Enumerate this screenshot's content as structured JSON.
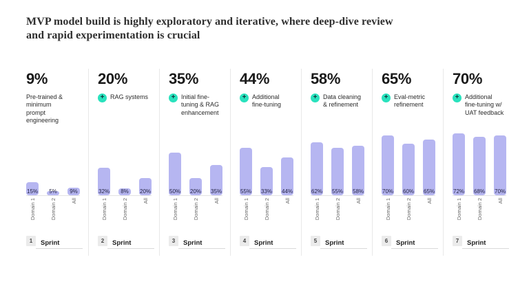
{
  "title": "MVP model build is highly exploratory and iterative, where deep-dive review\nand rapid experimentation is crucial",
  "sprint_word": "Sprint",
  "colors": {
    "bar_fill": "#b6b6f1",
    "bar_label_text": "#1f1f3d",
    "plus_icon_bg": "#29e2bd",
    "divider": "#e8e8e8",
    "headline_text": "#1a1a1a",
    "title_text": "#2f2f2f"
  },
  "icons": {
    "plus_glyph": "+"
  },
  "chart_data": {
    "type": "bar",
    "categories": [
      "Domain 1",
      "Domain 2",
      "All"
    ],
    "value_unit": "%",
    "ylim": [
      0,
      100
    ],
    "grid": false,
    "bar_label_position": "inside-bottom",
    "panels": [
      {
        "sprint": "1",
        "headline": "9%",
        "label": "Pre-trained & minimum prompt engineering",
        "has_plus_icon": false,
        "values": [
          15,
          5,
          9
        ],
        "value_labels": [
          "15%",
          "5%",
          "9%"
        ]
      },
      {
        "sprint": "2",
        "headline": "20%",
        "label": "RAG systems",
        "has_plus_icon": true,
        "values": [
          32,
          8,
          20
        ],
        "value_labels": [
          "32%",
          "8%",
          "20%"
        ]
      },
      {
        "sprint": "3",
        "headline": "35%",
        "label": "Initial fine-tuning & RAG enhancement",
        "has_plus_icon": true,
        "values": [
          50,
          20,
          35
        ],
        "value_labels": [
          "50%",
          "20%",
          "35%"
        ]
      },
      {
        "sprint": "4",
        "headline": "44%",
        "label": "Additional fine-tuning",
        "has_plus_icon": true,
        "values": [
          55,
          33,
          44
        ],
        "value_labels": [
          "55%",
          "33%",
          "44%"
        ]
      },
      {
        "sprint": "5",
        "headline": "58%",
        "label": "Data cleaning & refinement",
        "has_plus_icon": true,
        "values": [
          62,
          55,
          58
        ],
        "value_labels": [
          "62%",
          "55%",
          "58%"
        ]
      },
      {
        "sprint": "6",
        "headline": "65%",
        "label": "Eval-metric refinement",
        "has_plus_icon": true,
        "values": [
          70,
          60,
          65
        ],
        "value_labels": [
          "70%",
          "60%",
          "65%"
        ]
      },
      {
        "sprint": "7",
        "headline": "70%",
        "label": "Additional fine-tuning w/ UAT feedback",
        "has_plus_icon": true,
        "values": [
          72,
          68,
          70
        ],
        "value_labels": [
          "72%",
          "68%",
          "70%"
        ]
      }
    ]
  }
}
